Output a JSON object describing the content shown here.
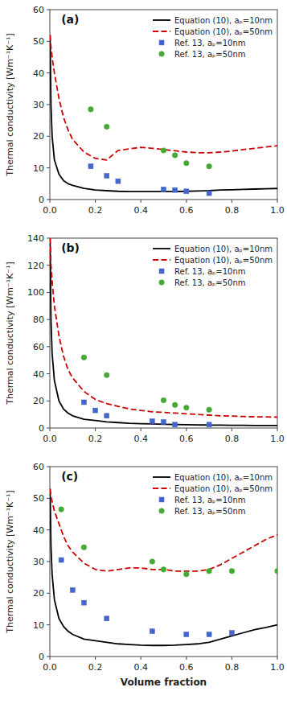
{
  "chart_data": [
    {
      "type": "line",
      "annotations": [
        "(a)"
      ],
      "y_label": "Thermal conductivity [Wm⁻¹K⁻¹]",
      "xlim": [
        0,
        1.0
      ],
      "xticks": [
        {
          "value": 0.0,
          "label": "0.0"
        },
        {
          "value": 0.2,
          "label": "0.2"
        },
        {
          "value": 0.4,
          "label": "0.4"
        },
        {
          "value": 0.6,
          "label": "0.6"
        },
        {
          "value": 0.8,
          "label": "0.8"
        },
        {
          "value": 1.0,
          "label": "1.0"
        }
      ],
      "ylim": [
        0,
        60
      ],
      "yticks": [
        0,
        10,
        20,
        30,
        40,
        50,
        60
      ],
      "grid": false,
      "legend": "upper right",
      "series": [
        {
          "name": "Equation (10), aₚ=10nm",
          "type": "line",
          "color": "#000000",
          "line_style": "solid",
          "x": [
            0.001,
            0.005,
            0.01,
            0.02,
            0.04,
            0.06,
            0.08,
            0.1,
            0.15,
            0.2,
            0.25,
            0.3,
            0.35,
            0.4,
            0.45,
            0.5,
            0.55,
            0.6,
            0.65,
            0.7,
            0.75,
            0.8,
            0.85,
            0.9,
            0.95,
            1.0
          ],
          "values": [
            52.0,
            30.0,
            20.0,
            12.5,
            8.0,
            6.0,
            5.0,
            4.5,
            3.5,
            3.0,
            2.8,
            2.6,
            2.5,
            2.5,
            2.5,
            2.5,
            2.5,
            2.6,
            2.7,
            2.8,
            3.0,
            3.1,
            3.2,
            3.3,
            3.4,
            3.5
          ]
        },
        {
          "name": "Equation (10), aₚ=50nm",
          "type": "line",
          "color": "#cc0000",
          "line_style": "dashed",
          "x": [
            0.001,
            0.005,
            0.01,
            0.02,
            0.04,
            0.06,
            0.08,
            0.1,
            0.15,
            0.2,
            0.25,
            0.3,
            0.35,
            0.4,
            0.45,
            0.5,
            0.55,
            0.6,
            0.65,
            0.7,
            0.75,
            0.8,
            0.85,
            0.9,
            0.95,
            1.0
          ],
          "values": [
            52.0,
            48.0,
            45.0,
            40.0,
            32.0,
            26.0,
            22.0,
            19.0,
            15.0,
            13.0,
            12.5,
            15.5,
            16.0,
            16.5,
            16.2,
            15.8,
            15.4,
            15.0,
            14.8,
            14.8,
            15.0,
            15.3,
            15.8,
            16.2,
            16.6,
            17.0
          ]
        },
        {
          "name": "Ref. 13, aₚ=10nm",
          "type": "scatter",
          "color": "#4466cc",
          "marker": "square",
          "x": [
            0.18,
            0.25,
            0.3,
            0.5,
            0.55,
            0.6,
            0.7
          ],
          "values": [
            10.5,
            7.5,
            5.8,
            3.2,
            3.0,
            2.6,
            2.0
          ]
        },
        {
          "name": "Ref. 13, aₚ=50nm",
          "type": "scatter",
          "color": "#44aa33",
          "marker": "circle",
          "x": [
            0.18,
            0.25,
            0.5,
            0.55,
            0.6,
            0.7
          ],
          "values": [
            28.5,
            23.0,
            15.5,
            14.0,
            11.5,
            10.5
          ]
        }
      ]
    },
    {
      "type": "line",
      "annotations": [
        "(b)"
      ],
      "y_label": "Thermal conductivity [Wm⁻¹K⁻¹]",
      "xlim": [
        0,
        1.0
      ],
      "xticks": [
        {
          "value": 0.0,
          "label": "0.0"
        },
        {
          "value": 0.2,
          "label": "0.2"
        },
        {
          "value": 0.4,
          "label": "0.4"
        },
        {
          "value": 0.6,
          "label": "0.6"
        },
        {
          "value": 0.8,
          "label": "0.8"
        },
        {
          "value": 1.0,
          "label": "1.0"
        }
      ],
      "ylim": [
        0,
        140
      ],
      "yticks": [
        0,
        20,
        40,
        60,
        80,
        100,
        120,
        140
      ],
      "grid": false,
      "legend": "upper right",
      "series": [
        {
          "name": "Equation (10), aₚ=10nm",
          "type": "line",
          "color": "#000000",
          "line_style": "solid",
          "x": [
            0.001,
            0.005,
            0.01,
            0.02,
            0.04,
            0.06,
            0.08,
            0.1,
            0.15,
            0.2,
            0.25,
            0.3,
            0.35,
            0.4,
            0.45,
            0.5,
            0.55,
            0.6,
            0.65,
            0.7,
            0.75,
            0.8,
            0.85,
            0.9,
            0.95,
            1.0
          ],
          "values": [
            140.0,
            80.0,
            55.0,
            35.0,
            20.0,
            14.0,
            11.0,
            9.0,
            6.5,
            5.5,
            4.5,
            4.0,
            3.5,
            3.2,
            3.0,
            2.8,
            2.6,
            2.5,
            2.3,
            2.2,
            2.1,
            2.0,
            2.0,
            1.9,
            1.8,
            1.8
          ]
        },
        {
          "name": "Equation (10), aₚ=50nm",
          "type": "line",
          "color": "#cc0000",
          "line_style": "dashed",
          "x": [
            0.001,
            0.005,
            0.01,
            0.02,
            0.04,
            0.06,
            0.08,
            0.1,
            0.15,
            0.2,
            0.25,
            0.3,
            0.35,
            0.4,
            0.45,
            0.5,
            0.55,
            0.6,
            0.65,
            0.7,
            0.75,
            0.8,
            0.85,
            0.9,
            0.95,
            1.0
          ],
          "values": [
            140.0,
            120.0,
            108.0,
            90.0,
            68.0,
            53.0,
            43.0,
            37.0,
            27.0,
            21.0,
            18.0,
            16.0,
            14.0,
            13.0,
            12.0,
            11.5,
            11.0,
            10.5,
            10.0,
            9.5,
            9.0,
            8.8,
            8.5,
            8.3,
            8.2,
            8.0
          ]
        },
        {
          "name": "Ref. 13, aₚ=10nm",
          "type": "scatter",
          "color": "#4466cc",
          "marker": "square",
          "x": [
            0.15,
            0.2,
            0.25,
            0.45,
            0.5,
            0.55,
            0.7
          ],
          "values": [
            19.0,
            13.0,
            9.0,
            5.0,
            4.5,
            2.5,
            2.5
          ]
        },
        {
          "name": "Ref. 13, aₚ=50nm",
          "type": "scatter",
          "color": "#44aa33",
          "marker": "circle",
          "x": [
            0.15,
            0.25,
            0.5,
            0.55,
            0.6,
            0.7
          ],
          "values": [
            52.0,
            39.0,
            20.5,
            17.0,
            15.0,
            13.5
          ]
        }
      ]
    },
    {
      "type": "line",
      "annotations": [
        "(c)"
      ],
      "x_label": "Volume fraction",
      "y_label": "Thermal conductivity [Wm⁻¹K⁻¹]",
      "xlim": [
        0,
        1.0
      ],
      "xticks": [
        {
          "value": 0.0,
          "label": "0.0"
        },
        {
          "value": 0.2,
          "label": "0.2"
        },
        {
          "value": 0.4,
          "label": "0.4"
        },
        {
          "value": 0.6,
          "label": "0.6"
        },
        {
          "value": 0.8,
          "label": "0.8"
        },
        {
          "value": 1.0,
          "label": "1.0"
        }
      ],
      "ylim": [
        0,
        60
      ],
      "yticks": [
        0,
        10,
        20,
        30,
        40,
        50,
        60
      ],
      "grid": false,
      "legend": "upper right",
      "series": [
        {
          "name": "Equation (10), aₚ=10nm",
          "type": "line",
          "color": "#000000",
          "line_style": "solid",
          "x": [
            0.001,
            0.005,
            0.01,
            0.02,
            0.04,
            0.06,
            0.08,
            0.1,
            0.15,
            0.2,
            0.25,
            0.3,
            0.35,
            0.4,
            0.45,
            0.5,
            0.55,
            0.6,
            0.65,
            0.7,
            0.75,
            0.8,
            0.85,
            0.9,
            0.95,
            1.0
          ],
          "values": [
            53.0,
            35.0,
            26.0,
            18.0,
            12.0,
            9.5,
            8.0,
            7.0,
            5.5,
            5.0,
            4.5,
            4.0,
            3.8,
            3.6,
            3.5,
            3.5,
            3.6,
            3.8,
            4.0,
            4.5,
            5.5,
            6.5,
            7.5,
            8.5,
            9.2,
            10.0
          ]
        },
        {
          "name": "Equation (10), aₚ=50nm",
          "type": "line",
          "color": "#cc0000",
          "line_style": "dashed",
          "x": [
            0.001,
            0.005,
            0.01,
            0.02,
            0.04,
            0.06,
            0.08,
            0.1,
            0.15,
            0.2,
            0.25,
            0.3,
            0.35,
            0.4,
            0.45,
            0.5,
            0.55,
            0.6,
            0.65,
            0.7,
            0.75,
            0.8,
            0.85,
            0.9,
            0.95,
            1.0
          ],
          "values": [
            53.0,
            50.5,
            49.0,
            46.0,
            42.0,
            38.0,
            35.0,
            33.0,
            29.5,
            27.5,
            27.0,
            27.5,
            28.0,
            28.0,
            27.5,
            27.5,
            27.0,
            27.0,
            27.0,
            27.5,
            29.0,
            31.0,
            33.0,
            35.0,
            37.0,
            38.5
          ]
        },
        {
          "name": "Ref. 13, aₚ=10nm",
          "type": "scatter",
          "color": "#4466cc",
          "marker": "square",
          "x": [
            0.05,
            0.1,
            0.15,
            0.25,
            0.45,
            0.6,
            0.7,
            0.8
          ],
          "values": [
            30.5,
            21.0,
            17.0,
            12.0,
            8.0,
            7.0,
            7.0,
            7.5
          ]
        },
        {
          "name": "Ref. 13, aₚ=50nm",
          "type": "scatter",
          "color": "#44aa33",
          "marker": "circle",
          "x": [
            0.05,
            0.15,
            0.45,
            0.5,
            0.6,
            0.7,
            0.8,
            1.0
          ],
          "values": [
            46.5,
            34.5,
            30.0,
            27.5,
            26.0,
            27.0,
            27.0,
            27.0
          ]
        }
      ]
    }
  ]
}
